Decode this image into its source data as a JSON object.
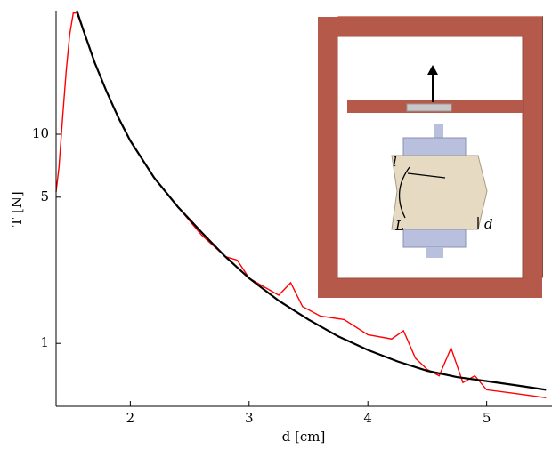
{
  "chart_data": {
    "type": "line",
    "xlabel": "d [cm]",
    "ylabel": "T [N]",
    "xlim": [
      1.375,
      5.55
    ],
    "ylim": [
      0.5,
      39
    ],
    "ylog": true,
    "xticks": [
      2,
      3,
      4,
      5
    ],
    "yticks": [
      1,
      5,
      10
    ],
    "series": [
      {
        "color": "#ff0000",
        "x": [
          1.375,
          1.4,
          1.43,
          1.46,
          1.49,
          1.52,
          1.55,
          1.6,
          1.7,
          1.8,
          1.9,
          2.0,
          2.2,
          2.4,
          2.6,
          2.8,
          2.9,
          3.0,
          3.1,
          3.25,
          3.35,
          3.45,
          3.6,
          3.8,
          4.0,
          4.2,
          4.3,
          4.4,
          4.5,
          4.6,
          4.7,
          4.8,
          4.9,
          5.0,
          5.2,
          5.5
        ],
        "values": [
          5.3,
          7,
          12,
          20,
          30,
          38,
          38,
          32,
          22,
          16,
          12,
          9.3,
          6.2,
          4.5,
          3.3,
          2.6,
          2.5,
          2.05,
          1.9,
          1.7,
          1.95,
          1.5,
          1.35,
          1.3,
          1.1,
          1.05,
          1.15,
          0.85,
          0.75,
          0.7,
          0.95,
          0.65,
          0.7,
          0.6,
          0.58,
          0.55
        ]
      },
      {
        "color": "#000000",
        "x": [
          1.55,
          1.6,
          1.7,
          1.8,
          1.9,
          2.0,
          2.2,
          2.4,
          2.6,
          2.8,
          3.0,
          3.25,
          3.5,
          3.75,
          4.0,
          4.25,
          4.5,
          4.75,
          5.0,
          5.25,
          5.5
        ],
        "values": [
          39,
          32,
          22,
          16,
          12,
          9.3,
          6.2,
          4.5,
          3.4,
          2.6,
          2.05,
          1.6,
          1.3,
          1.08,
          0.93,
          0.82,
          0.74,
          0.69,
          0.66,
          0.63,
          0.6
        ]
      }
    ],
    "annotations": [
      "l",
      "L",
      "d"
    ]
  }
}
